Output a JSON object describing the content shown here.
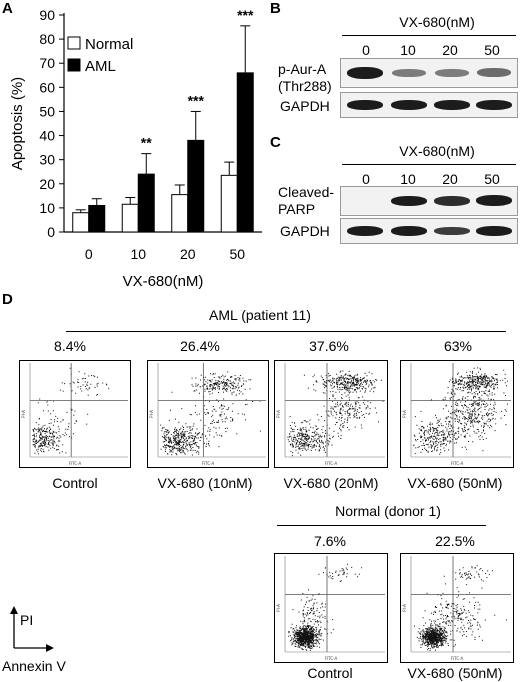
{
  "panels": {
    "a": "A",
    "b": "B",
    "c": "C",
    "d": "D"
  },
  "chart_data": {
    "type": "bar",
    "ylabel": "Apoptosis (%)",
    "xlabel": "VX-680(nM)",
    "categories": [
      "0",
      "10",
      "20",
      "50"
    ],
    "ylim": [
      0,
      90
    ],
    "yticks": [
      0,
      10,
      20,
      30,
      40,
      50,
      60,
      70,
      80,
      90
    ],
    "legend_position": "top-left",
    "series": [
      {
        "name": "Normal",
        "color": "#ffffff",
        "values": [
          8,
          11.5,
          15.5,
          23.5
        ],
        "errors": [
          1.2,
          2.8,
          4.0,
          5.5
        ]
      },
      {
        "name": "AML",
        "color": "#000000",
        "values": [
          11,
          24,
          38,
          66
        ],
        "errors": [
          2.8,
          8.5,
          12,
          19.5
        ]
      }
    ],
    "significance": [
      "",
      "**",
      "***",
      "***"
    ]
  },
  "blot_b": {
    "treatment": "VX-680(nM)",
    "doses": [
      "0",
      "10",
      "20",
      "50"
    ],
    "rows": [
      {
        "label_line1": "p-Aur-A",
        "label_line2": "(Thr288)",
        "intensities": [
          1.0,
          0.45,
          0.45,
          0.55
        ]
      },
      {
        "label_line1": "GAPDH",
        "label_line2": "",
        "intensities": [
          0.95,
          0.95,
          0.95,
          0.95
        ]
      }
    ]
  },
  "blot_c": {
    "treatment": "VX-680(nM)",
    "doses": [
      "0",
      "10",
      "20",
      "50"
    ],
    "rows": [
      {
        "label_line1": "Cleaved-",
        "label_line2": "PARP",
        "intensities": [
          0.0,
          0.95,
          0.9,
          1.0
        ]
      },
      {
        "label_line1": "GAPDH",
        "label_line2": "",
        "intensities": [
          0.95,
          0.95,
          0.85,
          0.95
        ]
      }
    ]
  },
  "flow_d": {
    "aml_group": "AML (patient 11)",
    "aml_percents": [
      "8.4%",
      "26.4%",
      "37.6%",
      "63%"
    ],
    "aml_labels": [
      "Control",
      "VX-680 (10nM)",
      "VX-680 (20nM)",
      "VX-680 (50nM)"
    ],
    "normal_group": "Normal (donor 1)",
    "normal_percents": [
      "7.6%",
      "22.5%"
    ],
    "normal_labels": [
      "Control",
      "VX-680 (50nM)"
    ],
    "axis_y": "PI",
    "axis_x": "Annexin V",
    "plot_xaxis": "FITC-A",
    "plot_yaxis": "PI-A"
  }
}
